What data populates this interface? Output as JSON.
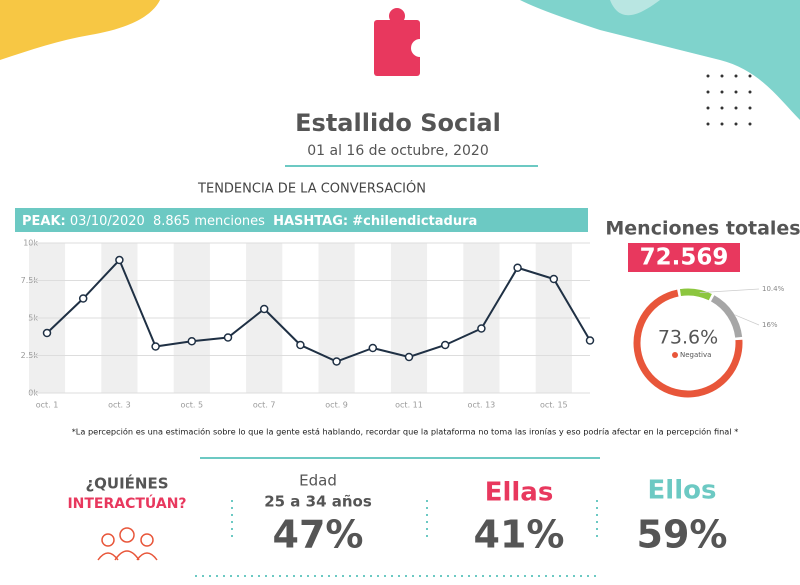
{
  "header": {
    "title": "Estallido Social",
    "subtitle": "01 al 16 de octubre,  2020",
    "section": "TENDENCIA DE LA CONVERSACIÓN"
  },
  "banner": {
    "peak_label": "PEAK:",
    "peak_date": "03/10/2020",
    "peak_mentions": "8.865 menciones",
    "hashtag_label": "HASHTAG:",
    "hashtag": "#chilendictadura"
  },
  "totals": {
    "label": "Menciones totales",
    "value": "72.569"
  },
  "chart_data": [
    {
      "type": "line",
      "color": "#1f3044",
      "categories": [
        "oct. 1",
        null,
        "oct. 3",
        null,
        "oct. 5",
        null,
        "oct. 7",
        null,
        "oct. 9",
        null,
        "oct. 11",
        null,
        "oct. 13",
        null,
        "oct. 15",
        null
      ],
      "values": [
        4000,
        6300,
        8865,
        3100,
        3450,
        3700,
        5600,
        3200,
        2100,
        3000,
        2400,
        3200,
        4300,
        8350,
        7600,
        3500
      ],
      "ylim": [
        0,
        10000
      ],
      "yticks": [
        {
          "value": 0,
          "label": "0k"
        },
        {
          "value": 2500,
          "label": "2.5k"
        },
        {
          "value": 5000,
          "label": "5k"
        },
        {
          "value": 7500,
          "label": "7.5k"
        },
        {
          "value": 10000,
          "label": "10k"
        }
      ],
      "grid": true
    },
    {
      "type": "pie",
      "categories": [
        null,
        null,
        "Negativa"
      ],
      "values": [
        10.4,
        16,
        73.6
      ],
      "value_labels": [
        "10.4%",
        "16%",
        "73.6%"
      ],
      "colors": [
        "#8cc63f",
        "#a6a6a6",
        "#e8563a"
      ]
    }
  ],
  "footnote": "*La percepción es una estimación sobre lo que la gente está hablando, recordar que la plataforma no toma las ironías y eso podría afectar en la percepción final *",
  "stats": {
    "who_1": "¿QUIÉNES",
    "who_2": "INTERACTÚAN?",
    "age_label": "Edad",
    "age_range": "25 a 34 años",
    "age_value": "47%",
    "women_label": "Ellas",
    "women_value": "41%",
    "men_label": "Ellos",
    "men_value": "59%"
  }
}
